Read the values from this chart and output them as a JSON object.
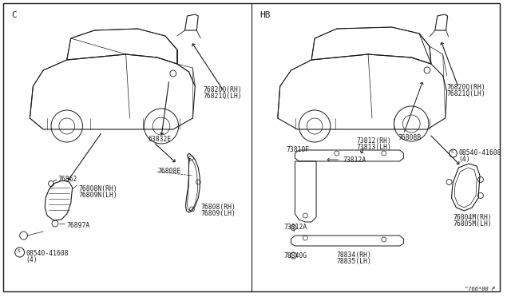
{
  "bg": "#ffffff",
  "lc": "#1a1a1a",
  "tc": "#1a1a1a",
  "fs": 5.8,
  "left_label": "C",
  "right_label": "HB",
  "note": "^766*00 P"
}
